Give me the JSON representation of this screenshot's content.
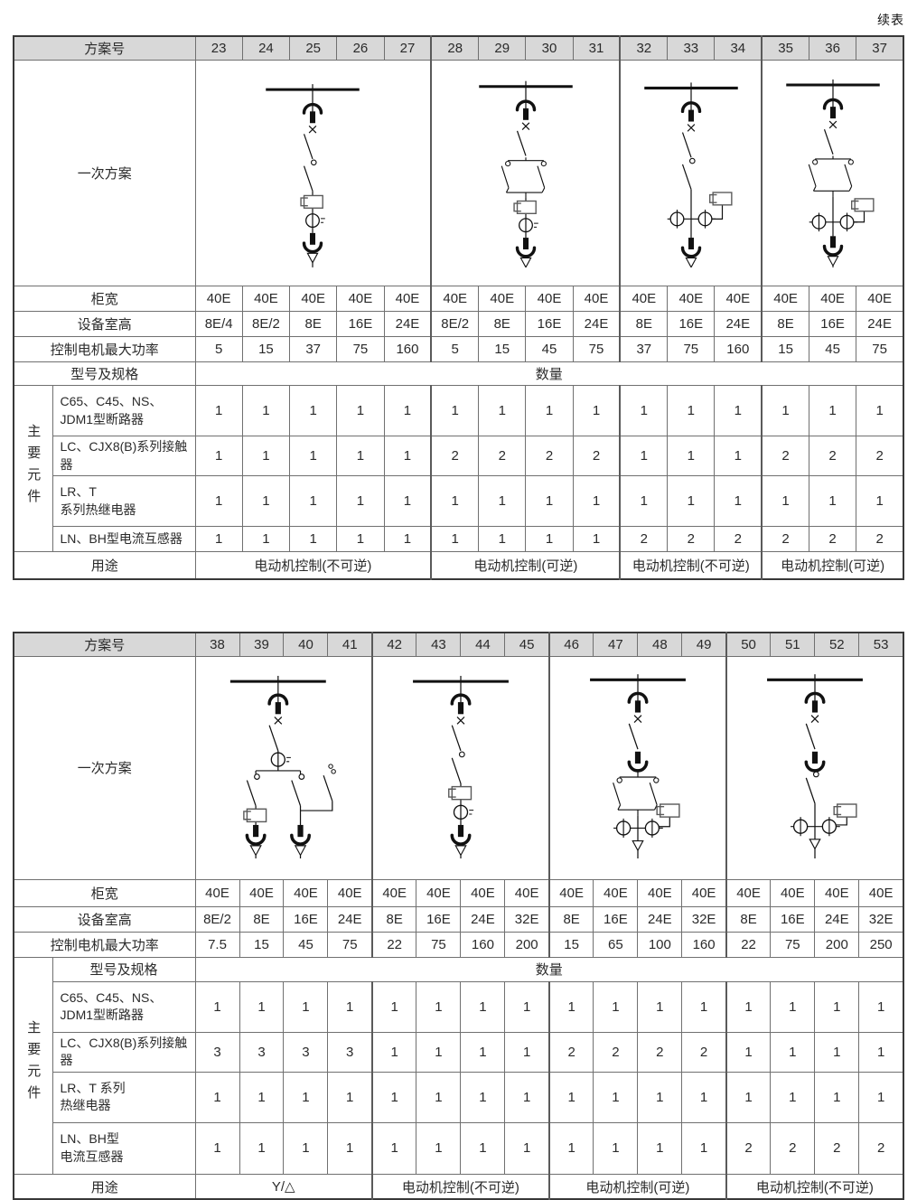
{
  "page": {
    "continued": "续表"
  },
  "table1": {
    "header_label": "方案号",
    "schemes": [
      "23",
      "24",
      "25",
      "26",
      "27",
      "28",
      "29",
      "30",
      "31",
      "32",
      "33",
      "34",
      "35",
      "36",
      "37"
    ],
    "primary_label": "一次方案",
    "width_label": "柜宽",
    "width_values": [
      "40E",
      "40E",
      "40E",
      "40E",
      "40E",
      "40E",
      "40E",
      "40E",
      "40E",
      "40E",
      "40E",
      "40E",
      "40E",
      "40E",
      "40E"
    ],
    "height_label": "设备室高",
    "height_values": [
      "8E/4",
      "8E/2",
      "8E",
      "16E",
      "24E",
      "8E/2",
      "8E",
      "16E",
      "24E",
      "8E",
      "16E",
      "24E",
      "8E",
      "16E",
      "24E"
    ],
    "power_label": "控制电机最大功率",
    "power_values": [
      "5",
      "15",
      "37",
      "75",
      "160",
      "5",
      "15",
      "45",
      "75",
      "37",
      "75",
      "160",
      "15",
      "45",
      "75"
    ],
    "spec_label": "型号及规格",
    "qty_label": "数量",
    "main_components_label": "主要元件",
    "components": [
      {
        "name": "C65、C45、NS、\nJDM1型断路器",
        "values": [
          "1",
          "1",
          "1",
          "1",
          "1",
          "1",
          "1",
          "1",
          "1",
          "1",
          "1",
          "1",
          "1",
          "1",
          "1"
        ]
      },
      {
        "name": "LC、CJX8(B)系列接触器",
        "values": [
          "1",
          "1",
          "1",
          "1",
          "1",
          "2",
          "2",
          "2",
          "2",
          "1",
          "1",
          "1",
          "2",
          "2",
          "2"
        ]
      },
      {
        "name": "LR、T\n系列热继电器",
        "values": [
          "1",
          "1",
          "1",
          "1",
          "1",
          "1",
          "1",
          "1",
          "1",
          "1",
          "1",
          "1",
          "1",
          "1",
          "1"
        ]
      },
      {
        "name": "LN、BH型电流互感器",
        "values": [
          "1",
          "1",
          "1",
          "1",
          "1",
          "1",
          "1",
          "1",
          "1",
          "2",
          "2",
          "2",
          "2",
          "2",
          "2"
        ]
      }
    ],
    "usage_label": "用途",
    "usages": [
      "电动机控制(不可逆)",
      "电动机控制(可逆)",
      "电动机控制(不可逆)",
      "电动机控制(可逆)"
    ],
    "diagram_types": [
      "motor-nonreversing-inline-ct",
      "motor-reversing-inline-ct",
      "motor-nonreversing-dual-ct",
      "motor-reversing-dual-ct"
    ]
  },
  "table2": {
    "header_label": "方案号",
    "schemes": [
      "38",
      "39",
      "40",
      "41",
      "42",
      "43",
      "44",
      "45",
      "46",
      "47",
      "48",
      "49",
      "50",
      "51",
      "52",
      "53"
    ],
    "primary_label": "一次方案",
    "width_label": "柜宽",
    "width_values": [
      "40E",
      "40E",
      "40E",
      "40E",
      "40E",
      "40E",
      "40E",
      "40E",
      "40E",
      "40E",
      "40E",
      "40E",
      "40E",
      "40E",
      "40E",
      "40E"
    ],
    "height_label": "设备室高",
    "height_values": [
      "8E/2",
      "8E",
      "16E",
      "24E",
      "8E",
      "16E",
      "24E",
      "32E",
      "8E",
      "16E",
      "24E",
      "32E",
      "8E",
      "16E",
      "24E",
      "32E"
    ],
    "power_label": "控制电机最大功率",
    "power_values": [
      "7.5",
      "15",
      "45",
      "75",
      "22",
      "75",
      "160",
      "200",
      "15",
      "65",
      "100",
      "160",
      "22",
      "75",
      "200",
      "250"
    ],
    "spec_label": "型号及规格",
    "qty_label": "数量",
    "main_components_label": "主要元件",
    "components": [
      {
        "name": "C65、C45、NS、\nJDM1型断路器",
        "values": [
          "1",
          "1",
          "1",
          "1",
          "1",
          "1",
          "1",
          "1",
          "1",
          "1",
          "1",
          "1",
          "1",
          "1",
          "1",
          "1"
        ]
      },
      {
        "name": "LC、CJX8(B)系列接触器",
        "values": [
          "3",
          "3",
          "3",
          "3",
          "1",
          "1",
          "1",
          "1",
          "2",
          "2",
          "2",
          "2",
          "1",
          "1",
          "1",
          "1"
        ]
      },
      {
        "name": "LR、T 系列\n热继电器",
        "values": [
          "1",
          "1",
          "1",
          "1",
          "1",
          "1",
          "1",
          "1",
          "1",
          "1",
          "1",
          "1",
          "1",
          "1",
          "1",
          "1"
        ]
      },
      {
        "name": "LN、BH型\n电流互感器",
        "values": [
          "1",
          "1",
          "1",
          "1",
          "1",
          "1",
          "1",
          "1",
          "1",
          "1",
          "1",
          "1",
          "2",
          "2",
          "2",
          "2"
        ]
      }
    ],
    "usage_label": "用途",
    "usages": [
      "Y/△",
      "电动机控制(不可逆)",
      "电动机控制(可逆)",
      "电动机控制(不可逆)"
    ],
    "diagram_types": [
      "motor-star-delta",
      "motor-nonreversing-inline-ct",
      "motor-reversing-dual-ct-drawout",
      "motor-nonreversing-dual-ct-drawout"
    ]
  }
}
